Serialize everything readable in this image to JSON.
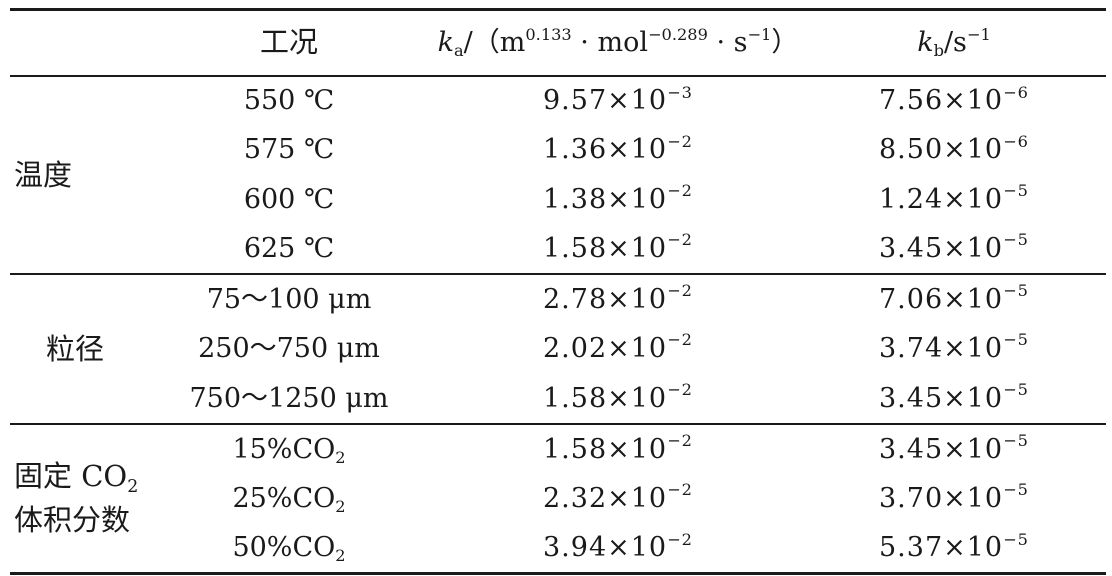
{
  "table": {
    "header": {
      "condition": "工况",
      "ka": {
        "symbol": "k",
        "sub": "a",
        "open": "/（m",
        "exp1": "0.133",
        "mid": " · mol",
        "exp2": "−0.289",
        "tail": " · s",
        "exp3": "−1",
        "close": "）"
      },
      "kb": {
        "symbol": "k",
        "sub": "b",
        "unit": "/s",
        "exp": "−1"
      }
    },
    "groups": {
      "temperature": "温度",
      "particle_size": "粒径",
      "co2_line1": "固定 CO",
      "co2_line1_sub": "2",
      "co2_line2": "体积分数"
    },
    "rows": [
      {
        "cond": "550 ℃",
        "ka_m": "9.57",
        "ka_e": "−3",
        "kb_m": "7.56",
        "kb_e": "−6"
      },
      {
        "cond": "575 ℃",
        "ka_m": "1.36",
        "ka_e": "−2",
        "kb_m": "8.50",
        "kb_e": "−6"
      },
      {
        "cond": "600 ℃",
        "ka_m": "1.38",
        "ka_e": "−2",
        "kb_m": "1.24",
        "kb_e": "−5"
      },
      {
        "cond": "625 ℃",
        "ka_m": "1.58",
        "ka_e": "−2",
        "kb_m": "3.45",
        "kb_e": "−5"
      },
      {
        "cond": "75～100 μm",
        "ka_m": "2.78",
        "ka_e": "−2",
        "kb_m": "7.06",
        "kb_e": "−5"
      },
      {
        "cond": "250～750 μm",
        "ka_m": "2.02",
        "ka_e": "−2",
        "kb_m": "3.74",
        "kb_e": "−5"
      },
      {
        "cond": "750～1250 μm",
        "ka_m": "1.58",
        "ka_e": "−2",
        "kb_m": "3.45",
        "kb_e": "−5"
      },
      {
        "cond": "15%CO",
        "cond_sub": "2",
        "ka_m": "1.58",
        "ka_e": "−2",
        "kb_m": "3.45",
        "kb_e": "−5"
      },
      {
        "cond": "25%CO",
        "cond_sub": "2",
        "ka_m": "2.32",
        "ka_e": "−2",
        "kb_m": "3.70",
        "kb_e": "−5"
      },
      {
        "cond": "50%CO",
        "cond_sub": "2",
        "ka_m": "3.94",
        "ka_e": "−2",
        "kb_m": "5.37",
        "kb_e": "−5"
      }
    ],
    "times_sign": "×10"
  }
}
